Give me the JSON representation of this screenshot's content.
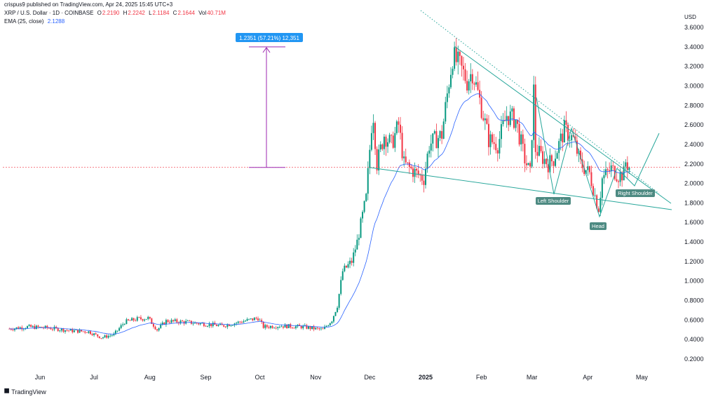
{
  "header": {
    "published": "crispus9 published on TradingView.com, Apr 24, 2025 15:45 UTC+3",
    "symbol": "XRP / U.S. Dollar · 1D · COINBASE",
    "ohlc": {
      "o_label": "O",
      "o": "2.2190",
      "h_label": "H",
      "h": "2.2242",
      "l_label": "L",
      "l": "2.1184",
      "c_label": "C",
      "c": "2.1644",
      "vol_label": "Vol",
      "vol": "40.71M"
    },
    "ema_label": "EMA (25, close)",
    "ema_value": "2.1288"
  },
  "footer": {
    "brand": "TradingView"
  },
  "colors": {
    "up": "#089981",
    "down": "#f23645",
    "ema": "#2962ff",
    "pattern": "#26a69a",
    "measure": "#9c27b0",
    "label_bg": "#2196f3",
    "shoulder_label_bg": "#4d8a82"
  },
  "chart_data": {
    "type": "candlestick",
    "currency_label": "USD",
    "y_ticks": [
      "3.6000",
      "3.4000",
      "3.2000",
      "3.0000",
      "2.8000",
      "2.6000",
      "2.4000",
      "2.2000",
      "2.0000",
      "1.8000",
      "1.6000",
      "1.4000",
      "1.2000",
      "1.0000",
      "0.8000",
      "0.6000",
      "0.4000",
      "0.2000"
    ],
    "ylim": [
      0.1,
      3.8
    ],
    "x_ticks": [
      "Jun",
      "Jul",
      "Aug",
      "Sep",
      "Oct",
      "Nov",
      "Dec",
      "2025",
      "Feb",
      "Mar",
      "Apr",
      "May"
    ],
    "x_tick_dates": [
      "2024-06-01",
      "2024-07-01",
      "2024-08-01",
      "2024-09-01",
      "2024-10-01",
      "2024-11-01",
      "2024-12-01",
      "2025-01-01",
      "2025-02-01",
      "2025-03-01",
      "2025-04-01",
      "2025-05-01"
    ],
    "bold_ticks": [
      "2025"
    ],
    "last_price": 2.1644,
    "ema_period": 25,
    "close_series": [
      [
        "2024-05-15",
        0.51
      ],
      [
        "2024-05-25",
        0.53
      ],
      [
        "2024-06-05",
        0.52
      ],
      [
        "2024-06-18",
        0.49
      ],
      [
        "2024-06-28",
        0.48
      ],
      [
        "2024-07-05",
        0.42
      ],
      [
        "2024-07-12",
        0.45
      ],
      [
        "2024-07-18",
        0.58
      ],
      [
        "2024-07-25",
        0.61
      ],
      [
        "2024-07-31",
        0.62
      ],
      [
        "2024-08-05",
        0.5
      ],
      [
        "2024-08-10",
        0.59
      ],
      [
        "2024-08-20",
        0.58
      ],
      [
        "2024-08-31",
        0.56
      ],
      [
        "2024-09-10",
        0.54
      ],
      [
        "2024-09-20",
        0.58
      ],
      [
        "2024-09-30",
        0.62
      ],
      [
        "2024-10-03",
        0.53
      ],
      [
        "2024-10-12",
        0.54
      ],
      [
        "2024-10-25",
        0.53
      ],
      [
        "2024-11-01",
        0.51
      ],
      [
        "2024-11-05",
        0.5
      ],
      [
        "2024-11-10",
        0.6
      ],
      [
        "2024-11-13",
        0.75
      ],
      [
        "2024-11-16",
        1.1
      ],
      [
        "2024-11-21",
        1.2
      ],
      [
        "2024-11-24",
        1.4
      ],
      [
        "2024-11-29",
        1.85
      ],
      [
        "2024-12-02",
        2.6
      ],
      [
        "2024-12-03",
        2.7
      ],
      [
        "2024-12-05",
        2.2
      ],
      [
        "2024-12-09",
        2.5
      ],
      [
        "2024-12-13",
        2.4
      ],
      [
        "2024-12-17",
        2.6
      ],
      [
        "2024-12-20",
        2.2
      ],
      [
        "2024-12-27",
        2.1
      ],
      [
        "2024-12-31",
        2.05
      ],
      [
        "2025-01-03",
        2.4
      ],
      [
        "2025-01-10",
        2.5
      ],
      [
        "2025-01-14",
        3.05
      ],
      [
        "2025-01-16",
        3.3
      ],
      [
        "2025-01-20",
        3.2
      ],
      [
        "2025-01-24",
        3.05
      ],
      [
        "2025-01-27",
        3.15
      ],
      [
        "2025-02-02",
        2.7
      ],
      [
        "2025-02-05",
        2.45
      ],
      [
        "2025-02-10",
        2.4
      ],
      [
        "2025-02-15",
        2.7
      ],
      [
        "2025-02-20",
        2.65
      ],
      [
        "2025-02-25",
        2.25
      ],
      [
        "2025-02-28",
        2.1
      ],
      [
        "2025-03-02",
        2.95
      ],
      [
        "2025-03-03",
        2.35
      ],
      [
        "2025-03-10",
        2.2
      ],
      [
        "2025-03-13",
        2.25
      ],
      [
        "2025-03-19",
        2.55
      ],
      [
        "2025-03-24",
        2.45
      ],
      [
        "2025-03-28",
        2.2
      ],
      [
        "2025-04-02",
        2.1
      ],
      [
        "2025-04-06",
        1.8
      ],
      [
        "2025-04-07",
        1.75
      ],
      [
        "2025-04-09",
        2.05
      ],
      [
        "2025-04-14",
        2.15
      ],
      [
        "2025-04-18",
        2.08
      ],
      [
        "2025-04-21",
        2.1
      ],
      [
        "2025-04-22",
        2.22
      ],
      [
        "2025-04-24",
        2.1644
      ]
    ],
    "annotations": {
      "measure_label": "1.2351 (57.21%) 12,351",
      "measure_from": 2.1644,
      "measure_to": 3.3995,
      "left_shoulder_label": "Left Shoulder",
      "head_label": "Head",
      "right_shoulder_label": "Right Shoulder"
    }
  }
}
